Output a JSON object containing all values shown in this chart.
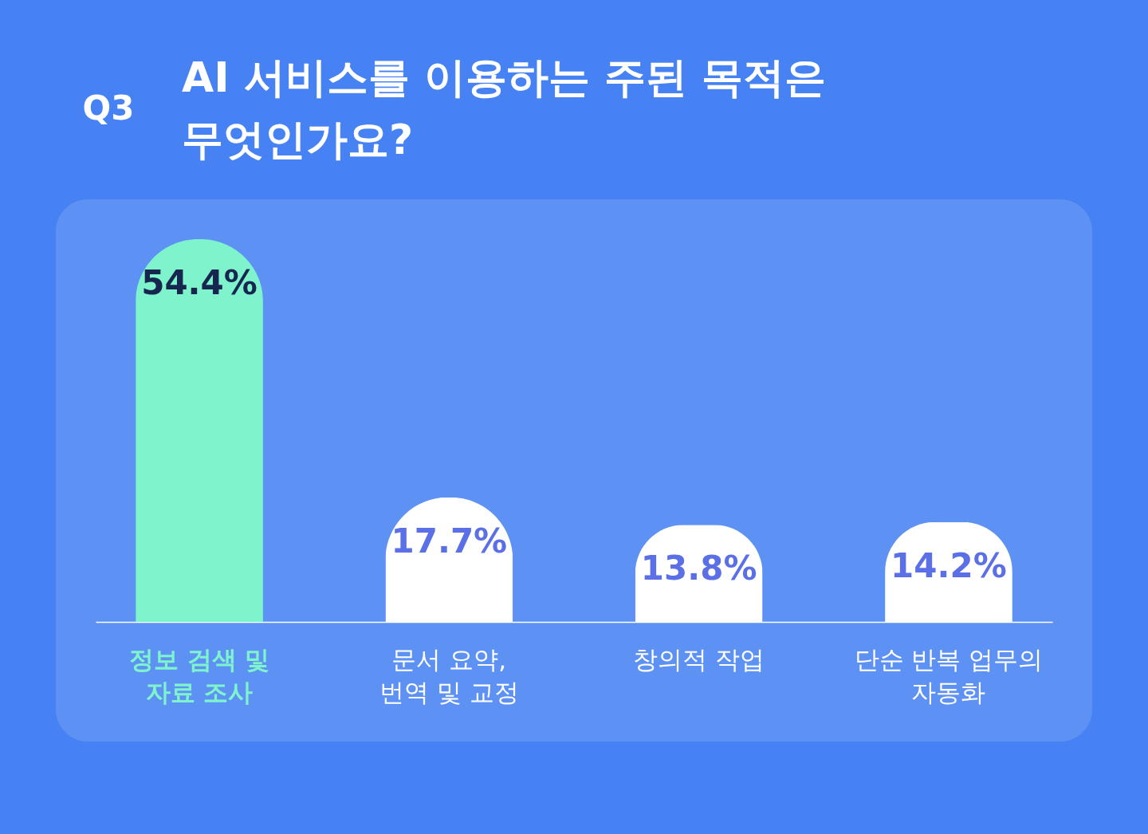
{
  "chart_data": {
    "type": "bar",
    "title": "AI 서비스를 이용하는 주된 목적은 무엇인가요?",
    "annotations": [
      "Q3"
    ],
    "categories": [
      "정보 검색 및 자료 조사",
      "문서 요약, 번역 및 교정",
      "창의적 작업",
      "단순 반복 업무의 자동화"
    ],
    "values": [
      54.4,
      17.7,
      13.8,
      14.2
    ],
    "colors": [
      "#7ff4cc",
      "#ffffff",
      "#ffffff",
      "#ffffff"
    ],
    "value_labels": [
      "54.4%",
      "17.7%",
      "13.8%",
      "14.2%"
    ]
  }
}
